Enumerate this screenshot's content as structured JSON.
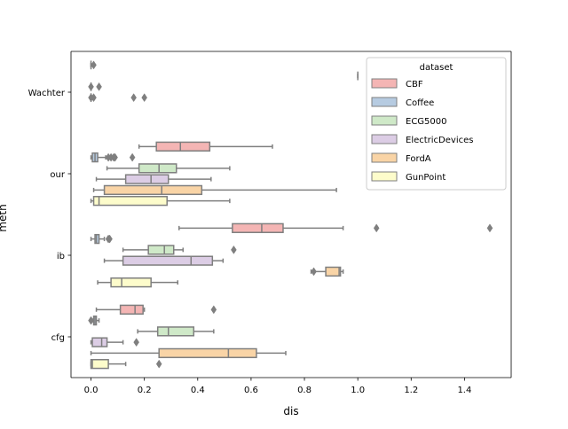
{
  "chart_data": {
    "type": "boxplot",
    "orientation": "horizontal",
    "xlabel": "dis",
    "ylabel": "meth",
    "xlim": [
      -0.075,
      1.575
    ],
    "x_ticks": [
      0.0,
      0.2,
      0.4,
      0.6,
      0.8,
      1.0,
      1.2,
      1.4
    ],
    "x_tick_labels": [
      "0.0",
      "0.2",
      "0.4",
      "0.6",
      "0.8",
      "1.0",
      "1.2",
      "1.4"
    ],
    "categories": [
      "Wachter",
      "our",
      "ib",
      "cfg"
    ],
    "legend": {
      "title": "dataset",
      "placement": "upper right",
      "entries": [
        {
          "name": "CBF",
          "color": "#f4b5b4"
        },
        {
          "name": "Coffee",
          "color": "#b6cbe1"
        },
        {
          "name": "ECG5000",
          "color": "#cfe9c8"
        },
        {
          "name": "ElectricDevices",
          "color": "#dccde5"
        },
        {
          "name": "FordA",
          "color": "#f9d4a6"
        },
        {
          "name": "GunPoint",
          "color": "#fdfccb"
        }
      ]
    },
    "boxes": [
      {
        "category": "Wachter",
        "series": "CBF",
        "whislo": 0.0,
        "q1": 0.0,
        "med": 0.0,
        "q3": 0.0,
        "whishi": 0.0,
        "fliers": [
          0.01
        ]
      },
      {
        "category": "Wachter",
        "series": "Coffee",
        "whislo": 1.0,
        "q1": 1.0,
        "med": 1.0,
        "q3": 1.0,
        "whishi": 1.0,
        "fliers": []
      },
      {
        "category": "Wachter",
        "series": "ECG5000",
        "whislo": 0.0,
        "q1": 0.0,
        "med": 0.0,
        "q3": 0.0,
        "whishi": 0.0,
        "fliers": [
          0.0,
          0.03
        ]
      },
      {
        "category": "Wachter",
        "series": "ElectricDevices",
        "whislo": 0.0,
        "q1": 0.0,
        "med": 0.0,
        "q3": 0.0,
        "whishi": 0.0,
        "fliers": [
          0.0,
          0.01,
          0.16,
          0.2
        ]
      },
      {
        "category": "our",
        "series": "CBF",
        "whislo": 0.18,
        "q1": 0.245,
        "med": 0.335,
        "q3": 0.445,
        "whishi": 0.68,
        "fliers": []
      },
      {
        "category": "our",
        "series": "Coffee",
        "whislo": 0.0,
        "q1": 0.005,
        "med": 0.015,
        "q3": 0.025,
        "whishi": 0.055,
        "fliers": [
          0.065,
          0.075,
          0.085,
          0.09,
          0.155
        ]
      },
      {
        "category": "our",
        "series": "ECG5000",
        "whislo": 0.06,
        "q1": 0.18,
        "med": 0.255,
        "q3": 0.32,
        "whishi": 0.52,
        "fliers": []
      },
      {
        "category": "our",
        "series": "ElectricDevices",
        "whislo": 0.02,
        "q1": 0.13,
        "med": 0.225,
        "q3": 0.29,
        "whishi": 0.45,
        "fliers": []
      },
      {
        "category": "our",
        "series": "FordA",
        "whislo": 0.01,
        "q1": 0.05,
        "med": 0.265,
        "q3": 0.415,
        "whishi": 0.92,
        "fliers": []
      },
      {
        "category": "our",
        "series": "GunPoint",
        "whislo": 0.0,
        "q1": 0.01,
        "med": 0.03,
        "q3": 0.285,
        "whishi": 0.52,
        "fliers": []
      },
      {
        "category": "ib",
        "series": "CBF",
        "whislo": 0.33,
        "q1": 0.53,
        "med": 0.64,
        "q3": 0.72,
        "whishi": 0.945,
        "fliers": [
          1.07,
          1.495
        ]
      },
      {
        "category": "ib",
        "series": "Coffee",
        "whislo": 0.0,
        "q1": 0.015,
        "med": 0.02,
        "q3": 0.03,
        "whishi": 0.05,
        "fliers": [
          0.065,
          0.07
        ]
      },
      {
        "category": "ib",
        "series": "ECG5000",
        "whislo": 0.12,
        "q1": 0.215,
        "med": 0.275,
        "q3": 0.31,
        "whishi": 0.345,
        "fliers": [
          0.535
        ]
      },
      {
        "category": "ib",
        "series": "ElectricDevices",
        "whislo": 0.05,
        "q1": 0.12,
        "med": 0.375,
        "q3": 0.455,
        "whishi": 0.495,
        "fliers": []
      },
      {
        "category": "ib",
        "series": "FordA",
        "whislo": 0.825,
        "q1": 0.88,
        "med": 0.93,
        "q3": 0.935,
        "whishi": 0.945,
        "fliers": [
          0.835
        ]
      },
      {
        "category": "ib",
        "series": "GunPoint",
        "whislo": 0.025,
        "q1": 0.075,
        "med": 0.115,
        "q3": 0.225,
        "whishi": 0.325,
        "fliers": []
      },
      {
        "category": "cfg",
        "series": "CBF",
        "whislo": 0.02,
        "q1": 0.11,
        "med": 0.165,
        "q3": 0.195,
        "whishi": 0.2,
        "fliers": [
          0.46
        ]
      },
      {
        "category": "cfg",
        "series": "Coffee",
        "whislo": 0.005,
        "q1": 0.01,
        "med": 0.015,
        "q3": 0.02,
        "whishi": 0.03,
        "fliers": [
          0.0
        ]
      },
      {
        "category": "cfg",
        "series": "ECG5000",
        "whislo": 0.175,
        "q1": 0.25,
        "med": 0.29,
        "q3": 0.385,
        "whishi": 0.46,
        "fliers": []
      },
      {
        "category": "cfg",
        "series": "ElectricDevices",
        "whislo": 0.0,
        "q1": 0.005,
        "med": 0.04,
        "q3": 0.06,
        "whishi": 0.12,
        "fliers": [
          0.17
        ]
      },
      {
        "category": "cfg",
        "series": "FordA",
        "whislo": 0.0,
        "q1": 0.255,
        "med": 0.515,
        "q3": 0.62,
        "whishi": 0.73,
        "fliers": []
      },
      {
        "category": "cfg",
        "series": "GunPoint",
        "whislo": 0.0,
        "q1": 0.0,
        "med": 0.005,
        "q3": 0.065,
        "whishi": 0.13,
        "fliers": [
          0.255
        ]
      }
    ]
  }
}
